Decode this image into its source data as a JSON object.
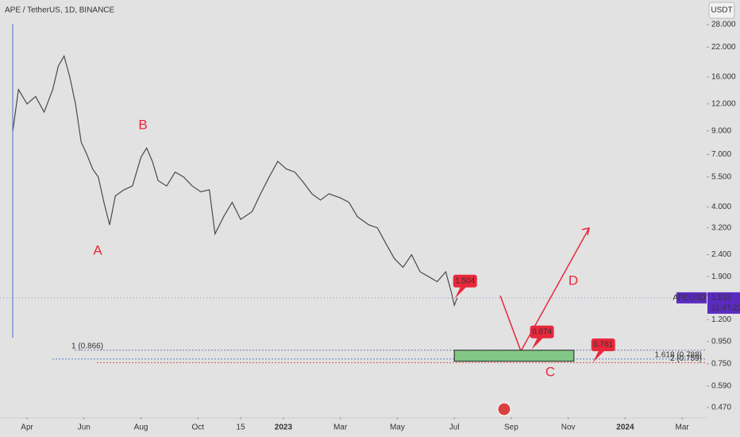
{
  "title": "APE / TetherUS, 1D, BINANCE",
  "currency": "USDT",
  "chart_data": {
    "type": "line",
    "log_scale": true,
    "series": [
      {
        "name": "APEUSDT",
        "color": "#4a4a4a",
        "x": [
          -0.5,
          -0.3,
          0,
          0.3,
          0.6,
          0.9,
          1.1,
          1.3,
          1.5,
          1.7,
          1.9,
          2.1,
          2.3,
          2.5,
          2.7,
          2.9,
          3.1,
          3.4,
          3.7,
          4.0,
          4.2,
          4.4,
          4.6,
          4.9,
          5.2,
          5.5,
          5.8,
          6.1,
          6.4,
          6.6,
          6.9,
          7.2,
          7.5,
          7.9,
          8.2,
          8.5,
          8.8,
          9.1,
          9.4,
          9.7,
          10.0,
          10.3,
          10.6,
          11.0,
          11.3,
          11.6,
          12.0,
          12.3,
          12.6,
          12.9,
          13.2,
          13.5,
          13.8,
          14.1,
          14.4,
          14.7,
          14.9,
          15.0,
          15.1
        ],
        "values": [
          9,
          14,
          12,
          13,
          11,
          14,
          18,
          20,
          16,
          12,
          8,
          7,
          6,
          5.5,
          4.2,
          3.3,
          4.5,
          4.8,
          5.0,
          6.8,
          7.5,
          6.5,
          5.3,
          5.0,
          5.8,
          5.5,
          5.0,
          4.7,
          4.8,
          3.0,
          3.6,
          4.2,
          3.5,
          3.8,
          4.6,
          5.5,
          6.5,
          6.0,
          5.8,
          5.2,
          4.6,
          4.3,
          4.6,
          4.4,
          4.2,
          3.6,
          3.3,
          3.2,
          2.7,
          2.3,
          2.1,
          2.4,
          2.0,
          1.9,
          1.8,
          2.0,
          1.6,
          1.4,
          1.515
        ]
      }
    ],
    "last_price": 1.515,
    "countdown": "11:47:22",
    "xlim": [
      -0.95,
      23.86
    ],
    "xticks": [
      {
        "value": 0,
        "label": "Apr"
      },
      {
        "value": 2,
        "label": "Jun"
      },
      {
        "value": 4,
        "label": "Aug"
      },
      {
        "value": 6,
        "label": "Oct"
      },
      {
        "value": 7.5,
        "label": "15"
      },
      {
        "value": 9,
        "label": "2023"
      },
      {
        "value": 11,
        "label": "Mar"
      },
      {
        "value": 13,
        "label": "May"
      },
      {
        "value": 15,
        "label": "Jul"
      },
      {
        "value": 17,
        "label": "Sep"
      },
      {
        "value": 19,
        "label": "Nov"
      },
      {
        "value": 21,
        "label": "2024"
      },
      {
        "value": 23,
        "label": "Mar"
      }
    ],
    "ylim": [
      0.424,
      36.4
    ],
    "yticks": [
      {
        "value": 28,
        "label": "28.000"
      },
      {
        "value": 22,
        "label": "22.000"
      },
      {
        "value": 16,
        "label": "16.000"
      },
      {
        "value": 12,
        "label": "12.000"
      },
      {
        "value": 9,
        "label": "9.000"
      },
      {
        "value": 7,
        "label": "7.000"
      },
      {
        "value": 5.5,
        "label": "5.500"
      },
      {
        "value": 4,
        "label": "4.000"
      },
      {
        "value": 3.2,
        "label": "3.200"
      },
      {
        "value": 2.4,
        "label": "2.400"
      },
      {
        "value": 1.9,
        "label": "1.900"
      },
      {
        "value": 1.2,
        "label": "1.200"
      },
      {
        "value": 0.95,
        "label": "0.950"
      },
      {
        "value": 0.75,
        "label": "0.750"
      },
      {
        "value": 0.59,
        "label": "0.590"
      },
      {
        "value": 0.47,
        "label": "0.470"
      }
    ],
    "fib_levels": [
      {
        "value": 0.866,
        "label": "1 (0.866)",
        "color": "#7a6fc0"
      },
      {
        "value": 0.788,
        "label": "1.618 (0.788)",
        "color": "#5a7fd0"
      },
      {
        "value": 0.759,
        "label": "2 (0.759)",
        "color": "#e05050"
      }
    ],
    "zone": {
      "top": 0.866,
      "bottom": 0.77,
      "x": [
        15.0,
        19.2
      ],
      "color": "#82c785"
    },
    "callouts": [
      {
        "value": 1.504,
        "x": 15.35
      },
      {
        "value": 0.874,
        "x": 18.05
      },
      {
        "value": 0.761,
        "x": 20.2
      }
    ],
    "wave_labels": [
      "A",
      "B",
      "C",
      "D"
    ]
  }
}
